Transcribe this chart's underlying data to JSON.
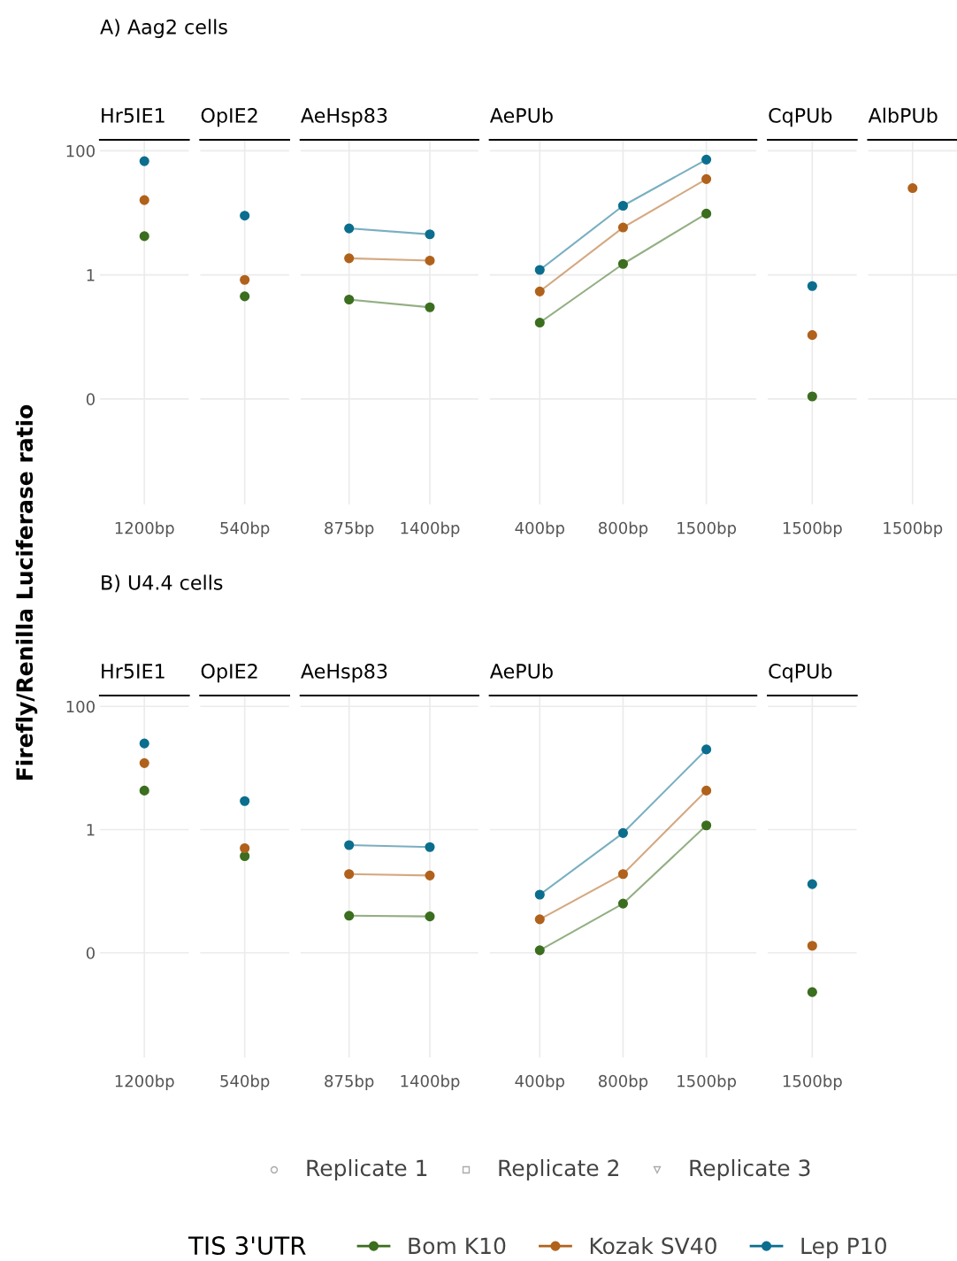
{
  "chart_data": [
    {
      "type": "line",
      "title": "Hr5IE1",
      "annotations": [
        "A) Aag2 cells"
      ],
      "ylabel": "Firefly/Renilla Luciferase ratio",
      "categories": [
        "1200bp"
      ],
      "log": true,
      "ylim": [
        0.0002,
        150
      ],
      "yticks": [
        100,
        1,
        {
          "value": 0.01,
          "label": "0"
        }
      ],
      "grid": true,
      "marker": "circle",
      "line_style": "solid",
      "series": [
        {
          "color": "#3b6e1f",
          "values": [
            4.2
          ]
        },
        {
          "color": "#b0621c",
          "values": [
            16
          ]
        },
        {
          "color": "#0b6e8e",
          "values": [
            68
          ]
        }
      ]
    },
    {
      "type": "line",
      "title": "OpIE2",
      "categories": [
        "540bp"
      ],
      "log": true,
      "ylim": [
        0.0002,
        150
      ],
      "yticks": [
        {
          "value": 100,
          "label": null
        },
        {
          "value": 1,
          "label": null
        },
        {
          "value": 0.01,
          "label": null
        }
      ],
      "tick_labels": "x",
      "grid": true,
      "marker": "circle",
      "line_style": "solid",
      "series": [
        {
          "color": "#3b6e1f",
          "values": [
            0.45
          ]
        },
        {
          "color": "#b0621c",
          "values": [
            0.83
          ]
        },
        {
          "color": "#0b6e8e",
          "values": [
            9
          ]
        }
      ]
    },
    {
      "type": "line",
      "title": "AeHsp83",
      "categories": [
        "875bp",
        "1400bp"
      ],
      "log": true,
      "ylim": [
        0.0002,
        150
      ],
      "yticks": [
        {
          "value": 100,
          "label": null
        },
        {
          "value": 1,
          "label": null
        },
        {
          "value": 0.01,
          "label": null
        }
      ],
      "tick_labels": "x",
      "grid": true,
      "marker": "circle",
      "line_style": "solid",
      "series": [
        {
          "color": "#3b6e1f",
          "values": [
            0.4,
            0.3
          ]
        },
        {
          "color": "#b0621c",
          "values": [
            1.85,
            1.7
          ]
        },
        {
          "color": "#0b6e8e",
          "values": [
            5.6,
            4.5
          ]
        }
      ]
    },
    {
      "type": "line",
      "title": "AePUb",
      "categories": [
        "400bp",
        "800bp",
        "1500bp"
      ],
      "log": true,
      "ylim": [
        0.0002,
        150
      ],
      "yticks": [
        {
          "value": 100,
          "label": null
        },
        {
          "value": 1,
          "label": null
        },
        {
          "value": 0.01,
          "label": null
        }
      ],
      "tick_labels": "x",
      "grid": true,
      "marker": "circle",
      "line_style": "solid",
      "series": [
        {
          "color": "#3b6e1f",
          "values": [
            0.17,
            1.5,
            9.7
          ]
        },
        {
          "color": "#b0621c",
          "values": [
            0.54,
            5.8,
            35
          ]
        },
        {
          "color": "#0b6e8e",
          "values": [
            1.2,
            13,
            72
          ]
        }
      ]
    },
    {
      "type": "line",
      "title": "CqPUb",
      "categories": [
        "1500bp"
      ],
      "log": true,
      "ylim": [
        0.0002,
        150
      ],
      "yticks": [
        {
          "value": 100,
          "label": null
        },
        {
          "value": 1,
          "label": null
        },
        {
          "value": 0.01,
          "label": null
        }
      ],
      "tick_labels": "x",
      "grid": true,
      "marker": "circle",
      "line_style": "solid",
      "series": [
        {
          "color": "#3b6e1f",
          "values": [
            0.011
          ]
        },
        {
          "color": "#b0621c",
          "values": [
            0.107
          ]
        },
        {
          "color": "#0b6e8e",
          "values": [
            0.66
          ]
        }
      ]
    },
    {
      "type": "line",
      "title": "AlbPUb",
      "categories": [
        "1500bp"
      ],
      "log": true,
      "ylim": [
        0.0002,
        150
      ],
      "yticks": [
        {
          "value": 100,
          "label": null
        },
        {
          "value": 1,
          "label": null
        },
        {
          "value": 0.01,
          "label": null
        }
      ],
      "tick_labels": "x",
      "grid": true,
      "marker": "circle",
      "line_style": "solid",
      "series": [
        {
          "color": "#b0621c",
          "values": [
            25
          ]
        }
      ]
    },
    {
      "type": "line",
      "title": "Hr5IE1",
      "annotations": [
        "B) U4.4 cells"
      ],
      "categories": [
        "1200bp"
      ],
      "log": true,
      "ylim": [
        0.0002,
        150
      ],
      "yticks": [
        100,
        1,
        {
          "value": 0.01,
          "label": "0"
        }
      ],
      "grid": true,
      "marker": "circle",
      "line_style": "solid",
      "series": [
        {
          "color": "#3b6e1f",
          "values": [
            4.3
          ]
        },
        {
          "color": "#b0621c",
          "values": [
            12
          ]
        },
        {
          "color": "#0b6e8e",
          "values": [
            25
          ]
        }
      ]
    },
    {
      "type": "line",
      "title": "OpIE2",
      "categories": [
        "540bp"
      ],
      "log": true,
      "ylim": [
        0.0002,
        150
      ],
      "yticks": [
        {
          "value": 100,
          "label": null
        },
        {
          "value": 1,
          "label": null
        },
        {
          "value": 0.01,
          "label": null
        }
      ],
      "tick_labels": "x",
      "grid": true,
      "marker": "circle",
      "line_style": "solid",
      "series": [
        {
          "color": "#3b6e1f",
          "values": [
            0.37
          ]
        },
        {
          "color": "#b0621c",
          "values": [
            0.5
          ]
        },
        {
          "color": "#0b6e8e",
          "values": [
            2.9
          ]
        }
      ]
    },
    {
      "type": "line",
      "title": "AeHsp83",
      "categories": [
        "875bp",
        "1400bp"
      ],
      "log": true,
      "ylim": [
        0.0002,
        150
      ],
      "yticks": [
        {
          "value": 100,
          "label": null
        },
        {
          "value": 1,
          "label": null
        },
        {
          "value": 0.01,
          "label": null
        }
      ],
      "tick_labels": "x",
      "grid": true,
      "marker": "circle",
      "line_style": "solid",
      "series": [
        {
          "color": "#3b6e1f",
          "values": [
            0.04,
            0.039
          ]
        },
        {
          "color": "#b0621c",
          "values": [
            0.19,
            0.18
          ]
        },
        {
          "color": "#0b6e8e",
          "values": [
            0.56,
            0.52
          ]
        }
      ]
    },
    {
      "type": "line",
      "title": "AePUb",
      "categories": [
        "400bp",
        "800bp",
        "1500bp"
      ],
      "log": true,
      "ylim": [
        0.0002,
        150
      ],
      "yticks": [
        {
          "value": 100,
          "label": null
        },
        {
          "value": 1,
          "label": null
        },
        {
          "value": 0.01,
          "label": null
        }
      ],
      "tick_labels": "x",
      "grid": true,
      "marker": "circle",
      "line_style": "solid",
      "series": [
        {
          "color": "#3b6e1f",
          "values": [
            0.011,
            0.063,
            1.17
          ]
        },
        {
          "color": "#b0621c",
          "values": [
            0.035,
            0.19,
            4.3
          ]
        },
        {
          "color": "#0b6e8e",
          "values": [
            0.088,
            0.88,
            20
          ]
        }
      ]
    },
    {
      "type": "line",
      "title": "CqPUb",
      "categories": [
        "1500bp"
      ],
      "log": true,
      "ylim": [
        0.0002,
        150
      ],
      "yticks": [
        {
          "value": 100,
          "label": null
        },
        {
          "value": 1,
          "label": null
        },
        {
          "value": 0.01,
          "label": null
        }
      ],
      "tick_labels": "x",
      "grid": true,
      "marker": "circle",
      "line_style": "solid",
      "legend": "bottom",
      "legend_title": "TIS 3'UTR",
      "series": [
        {
          "name": "Bom K10",
          "color": "#3b6e1f",
          "values": [
            0.0023
          ]
        },
        {
          "name": "Kozak SV40",
          "color": "#b0621c",
          "values": [
            0.013
          ]
        },
        {
          "name": "Lep P10",
          "color": "#0b6e8e",
          "values": [
            0.13
          ]
        }
      ]
    },
    {
      "type": "other",
      "annotations": [
        "Replicate 1",
        "Replicate 2",
        "Replicate 3"
      ]
    }
  ]
}
